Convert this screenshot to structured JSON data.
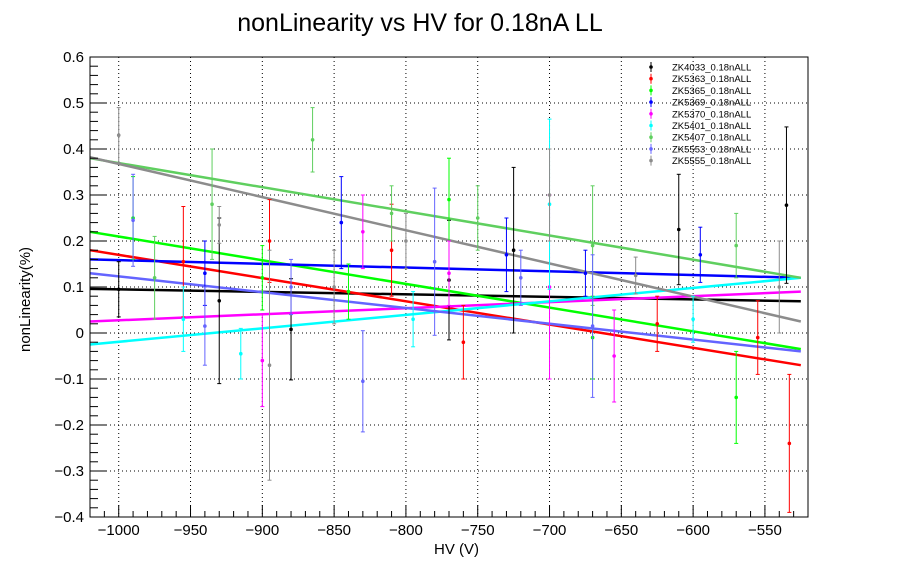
{
  "chart_data": {
    "type": "scatter",
    "title": "nonLinearity vs HV for 0.18nA LL",
    "xlabel": "HV (V)",
    "ylabel": "nonLinearity(%)",
    "xlim": [
      -1020,
      -520
    ],
    "ylim": [
      -0.4,
      0.6
    ],
    "xticks": [
      -1000,
      -950,
      -900,
      -850,
      -800,
      -750,
      -700,
      -650,
      -600,
      -550
    ],
    "xtick_labels": [
      "−1000",
      "−950",
      "−900",
      "−850",
      "−800",
      "−750",
      "−700",
      "−650",
      "−600",
      "−550"
    ],
    "yticks": [
      -0.4,
      -0.3,
      -0.2,
      -0.1,
      0,
      0.1,
      0.2,
      0.3,
      0.4,
      0.5,
      0.6
    ],
    "ytick_labels": [
      "−0.4",
      "−0.3",
      "−0.2",
      "−0.1",
      "0",
      "0.1",
      "0.2",
      "0.3",
      "0.4",
      "0.5",
      "0.6"
    ],
    "grid": true,
    "legend_position": "top-right",
    "series": [
      {
        "name": "ZK4033_0.18nALL",
        "color": "#000000",
        "fit": [
          [
            -1020,
            0.096
          ],
          [
            -525,
            0.069
          ]
        ],
        "points": [
          {
            "x": -1000,
            "y": 0.095,
            "err": 0.06
          },
          {
            "x": -930,
            "y": 0.07,
            "err": 0.18
          },
          {
            "x": -880,
            "y": 0.008,
            "err": 0.11
          },
          {
            "x": -770,
            "y": 0.115,
            "err": 0.13
          },
          {
            "x": -725,
            "y": 0.18,
            "err": 0.18
          },
          {
            "x": -610,
            "y": 0.225,
            "err": 0.12
          },
          {
            "x": -535,
            "y": 0.278,
            "err": 0.17
          }
        ]
      },
      {
        "name": "ZK5363_0.18nALL",
        "color": "#ff0000",
        "fit": [
          [
            -1020,
            0.18
          ],
          [
            -525,
            -0.07
          ]
        ],
        "points": [
          {
            "x": -955,
            "y": 0.155,
            "err": 0.12
          },
          {
            "x": -895,
            "y": 0.2,
            "err": 0.09
          },
          {
            "x": -810,
            "y": 0.18,
            "err": 0.1
          },
          {
            "x": -760,
            "y": -0.02,
            "err": 0.08
          },
          {
            "x": -625,
            "y": 0.02,
            "err": 0.06
          },
          {
            "x": -555,
            "y": -0.01,
            "err": 0.08
          },
          {
            "x": -533,
            "y": -0.24,
            "err": 0.15
          }
        ]
      },
      {
        "name": "ZK5365_0.18nALL",
        "color": "#00ff00",
        "fit": [
          [
            -1020,
            0.22
          ],
          [
            -525,
            -0.035
          ]
        ],
        "points": [
          {
            "x": -990,
            "y": 0.25,
            "err": 0.09
          },
          {
            "x": -900,
            "y": 0.12,
            "err": 0.07
          },
          {
            "x": -840,
            "y": 0.09,
            "err": 0.06
          },
          {
            "x": -770,
            "y": 0.29,
            "err": 0.09
          },
          {
            "x": -670,
            "y": -0.01,
            "err": 0.09
          },
          {
            "x": -570,
            "y": -0.14,
            "err": 0.1
          }
        ]
      },
      {
        "name": "ZK5369_0.18nALL",
        "color": "#0000ff",
        "fit": [
          [
            -1020,
            0.16
          ],
          [
            -525,
            0.12
          ]
        ],
        "points": [
          {
            "x": -940,
            "y": 0.13,
            "err": 0.07
          },
          {
            "x": -845,
            "y": 0.24,
            "err": 0.1
          },
          {
            "x": -730,
            "y": 0.17,
            "err": 0.08
          },
          {
            "x": -675,
            "y": 0.13,
            "err": 0.05
          },
          {
            "x": -595,
            "y": 0.17,
            "err": 0.06
          }
        ]
      },
      {
        "name": "ZK5370_0.18nALL",
        "color": "#ff00ff",
        "fit": [
          [
            -1020,
            0.025
          ],
          [
            -525,
            0.09
          ]
        ],
        "points": [
          {
            "x": -900,
            "y": -0.06,
            "err": 0.1
          },
          {
            "x": -830,
            "y": 0.22,
            "err": 0.08
          },
          {
            "x": -770,
            "y": 0.13,
            "err": 0.07
          },
          {
            "x": -700,
            "y": 0.1,
            "err": 0.2
          },
          {
            "x": -655,
            "y": -0.05,
            "err": 0.1
          }
        ]
      },
      {
        "name": "ZK5401_0.18nALL",
        "color": "#00ffff",
        "fit": [
          [
            -1020,
            -0.025
          ],
          [
            -525,
            0.12
          ]
        ],
        "points": [
          {
            "x": -955,
            "y": 0.03,
            "err": 0.07
          },
          {
            "x": -915,
            "y": -0.045,
            "err": 0.055
          },
          {
            "x": -795,
            "y": 0.03,
            "err": 0.06
          },
          {
            "x": -700,
            "y": 0.28,
            "err": 0.185
          },
          {
            "x": -600,
            "y": 0.03,
            "err": 0.05
          }
        ]
      },
      {
        "name": "ZK5407_0.18nALL",
        "color": "#5fcf5f",
        "fit": [
          [
            -1020,
            0.38
          ],
          [
            -525,
            0.12
          ]
        ],
        "points": [
          {
            "x": -975,
            "y": 0.12,
            "err": 0.09
          },
          {
            "x": -935,
            "y": 0.28,
            "err": 0.12
          },
          {
            "x": -865,
            "y": 0.42,
            "err": 0.07
          },
          {
            "x": -810,
            "y": 0.26,
            "err": 0.06
          },
          {
            "x": -750,
            "y": 0.25,
            "err": 0.07
          },
          {
            "x": -670,
            "y": 0.19,
            "err": 0.13
          },
          {
            "x": -570,
            "y": 0.19,
            "err": 0.07
          }
        ]
      },
      {
        "name": "ZK5553_0.18nALL",
        "color": "#6464ff",
        "fit": [
          [
            -1020,
            0.13
          ],
          [
            -525,
            -0.04
          ]
        ],
        "points": [
          {
            "x": -990,
            "y": 0.245,
            "err": 0.1
          },
          {
            "x": -940,
            "y": 0.015,
            "err": 0.085
          },
          {
            "x": -880,
            "y": 0.1,
            "err": 0.06
          },
          {
            "x": -830,
            "y": -0.105,
            "err": 0.11
          },
          {
            "x": -780,
            "y": 0.155,
            "err": 0.16
          },
          {
            "x": -720,
            "y": 0.12,
            "err": 0.06
          },
          {
            "x": -670,
            "y": 0.015,
            "err": 0.155
          }
        ]
      },
      {
        "name": "ZK5555_0.18nALL",
        "color": "#8c8c8c",
        "fit": [
          [
            -1020,
            0.382
          ],
          [
            -525,
            0.025
          ]
        ],
        "points": [
          {
            "x": -1000,
            "y": 0.43,
            "err": 0.06
          },
          {
            "x": -930,
            "y": 0.235,
            "err": 0.04
          },
          {
            "x": -895,
            "y": -0.07,
            "err": 0.25
          },
          {
            "x": -850,
            "y": 0.1,
            "err": 0.08
          },
          {
            "x": -800,
            "y": 0.2,
            "err": 0.06
          },
          {
            "x": -700,
            "y": 0.3,
            "err": 0.1
          },
          {
            "x": -640,
            "y": 0.125,
            "err": 0.04
          },
          {
            "x": -540,
            "y": 0.1,
            "err": 0.1
          }
        ]
      }
    ]
  }
}
